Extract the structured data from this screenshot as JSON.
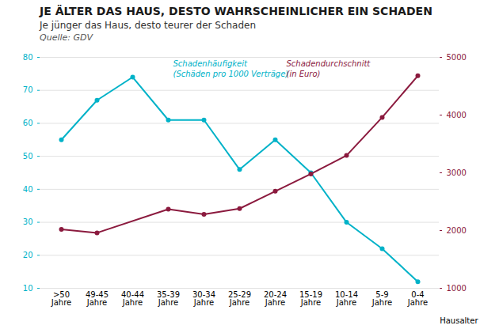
{
  "chart_data": {
    "type": "line",
    "title": "JE ÄLTER DAS HAUS, DESTO WAHRSCHEINLICHER EIN SCHADEN",
    "subtitle": "Je jünger das Haus, desto teurer der Schaden",
    "source": "Quelle: GDV",
    "xlabel": "Hausalter",
    "categories": [
      ">50\nJahre",
      "49-45\nJahre",
      "40-44\nJahre",
      "35-39\nJahre",
      "30-34\nJahre",
      "25-29\nJahre",
      "20-24\nJahre",
      "15-19\nJahre",
      "10-14\nJahre",
      "5-9\nJahre",
      "0-4\nJahre"
    ],
    "series": [
      {
        "name": "Schadenhäufigkeit\n(Schäden pro 1000 Verträge)",
        "color": "#00B2C8",
        "marker": "circle",
        "values": [
          55,
          67,
          74,
          61,
          61,
          46,
          55,
          45,
          30,
          22,
          12
        ]
      },
      {
        "name": "Schadendurchschnitt\n(in Euro)",
        "color": "#8B1A3E",
        "marker": "circle",
        "axis": "y2",
        "values": [
          2020,
          1960,
          null,
          2370,
          2280,
          2380,
          2680,
          2980,
          3300,
          3960,
          4680
        ]
      }
    ],
    "ylim": [
      10,
      80
    ],
    "yticks": [
      10,
      20,
      30,
      40,
      50,
      60,
      70,
      80
    ],
    "y2lim": [
      1000,
      5000
    ],
    "y2ticks": [
      1000,
      2000,
      3000,
      4000,
      5000
    ],
    "grid": true
  }
}
